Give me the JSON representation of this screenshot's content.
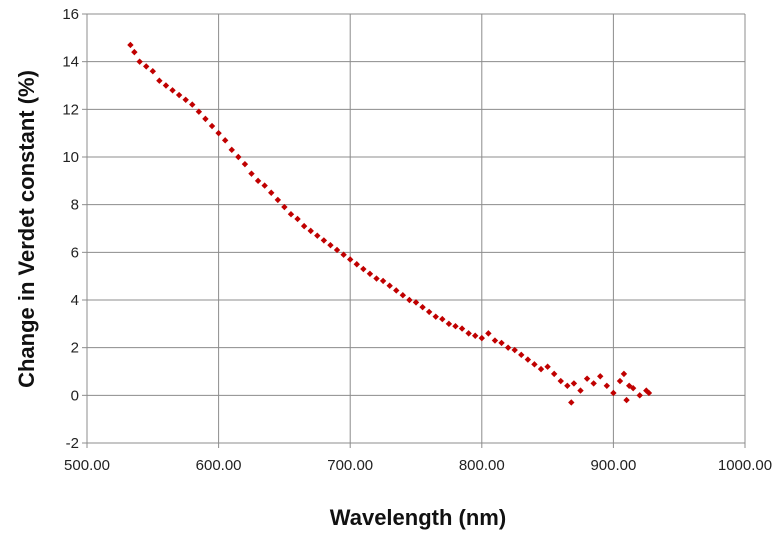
{
  "chart_data": {
    "type": "scatter",
    "title": "",
    "xlabel": "Wavelength (nm)",
    "ylabel": "Change in Verdet constant (%)",
    "xlim": [
      500,
      1000
    ],
    "ylim": [
      -2,
      16
    ],
    "x_ticks": [
      500,
      600,
      700,
      800,
      900,
      1000
    ],
    "x_tick_labels": [
      "500.00",
      "600.00",
      "700.00",
      "800.00",
      "900.00",
      "1000.00"
    ],
    "y_ticks": [
      -2,
      0,
      2,
      4,
      6,
      8,
      10,
      12,
      14,
      16
    ],
    "y_tick_labels": [
      "-2",
      "0",
      "2",
      "4",
      "6",
      "8",
      "10",
      "12",
      "14",
      "16"
    ],
    "grid": true,
    "legend": "none",
    "marker_color": "#C00000",
    "series": [
      {
        "x": [
          533,
          536,
          540,
          545,
          550,
          555,
          560,
          565,
          570,
          575,
          580,
          585,
          590,
          595,
          600,
          605,
          610,
          615,
          620,
          625,
          630,
          635,
          640,
          645,
          650,
          655,
          660,
          665,
          670,
          675,
          680,
          685,
          690,
          695,
          700,
          705,
          710,
          715,
          720,
          725,
          730,
          735,
          740,
          745,
          750,
          755,
          760,
          765,
          770,
          775,
          780,
          785,
          790,
          795,
          800,
          805,
          810,
          815,
          820,
          825,
          830,
          835,
          840,
          845,
          850,
          855,
          860,
          865,
          868,
          870,
          875,
          880,
          885,
          890,
          895,
          900,
          905,
          908,
          910,
          912,
          915,
          920,
          925,
          927
        ],
        "y": [
          14.7,
          14.4,
          14.0,
          13.8,
          13.6,
          13.2,
          13.0,
          12.8,
          12.6,
          12.4,
          12.2,
          11.9,
          11.6,
          11.3,
          11.0,
          10.7,
          10.3,
          10.0,
          9.7,
          9.3,
          9.0,
          8.8,
          8.5,
          8.2,
          7.9,
          7.6,
          7.4,
          7.1,
          6.9,
          6.7,
          6.5,
          6.3,
          6.1,
          5.9,
          5.7,
          5.5,
          5.3,
          5.1,
          4.9,
          4.8,
          4.6,
          4.4,
          4.2,
          4.0,
          3.9,
          3.7,
          3.5,
          3.3,
          3.2,
          3.0,
          2.9,
          2.8,
          2.6,
          2.5,
          2.4,
          2.6,
          2.3,
          2.2,
          2.0,
          1.9,
          1.7,
          1.5,
          1.3,
          1.1,
          1.2,
          0.9,
          0.6,
          0.4,
          -0.3,
          0.5,
          0.2,
          0.7,
          0.5,
          0.8,
          0.4,
          0.1,
          0.6,
          0.9,
          -0.2,
          0.4,
          0.3,
          0.0,
          0.2,
          0.1
        ]
      }
    ]
  }
}
